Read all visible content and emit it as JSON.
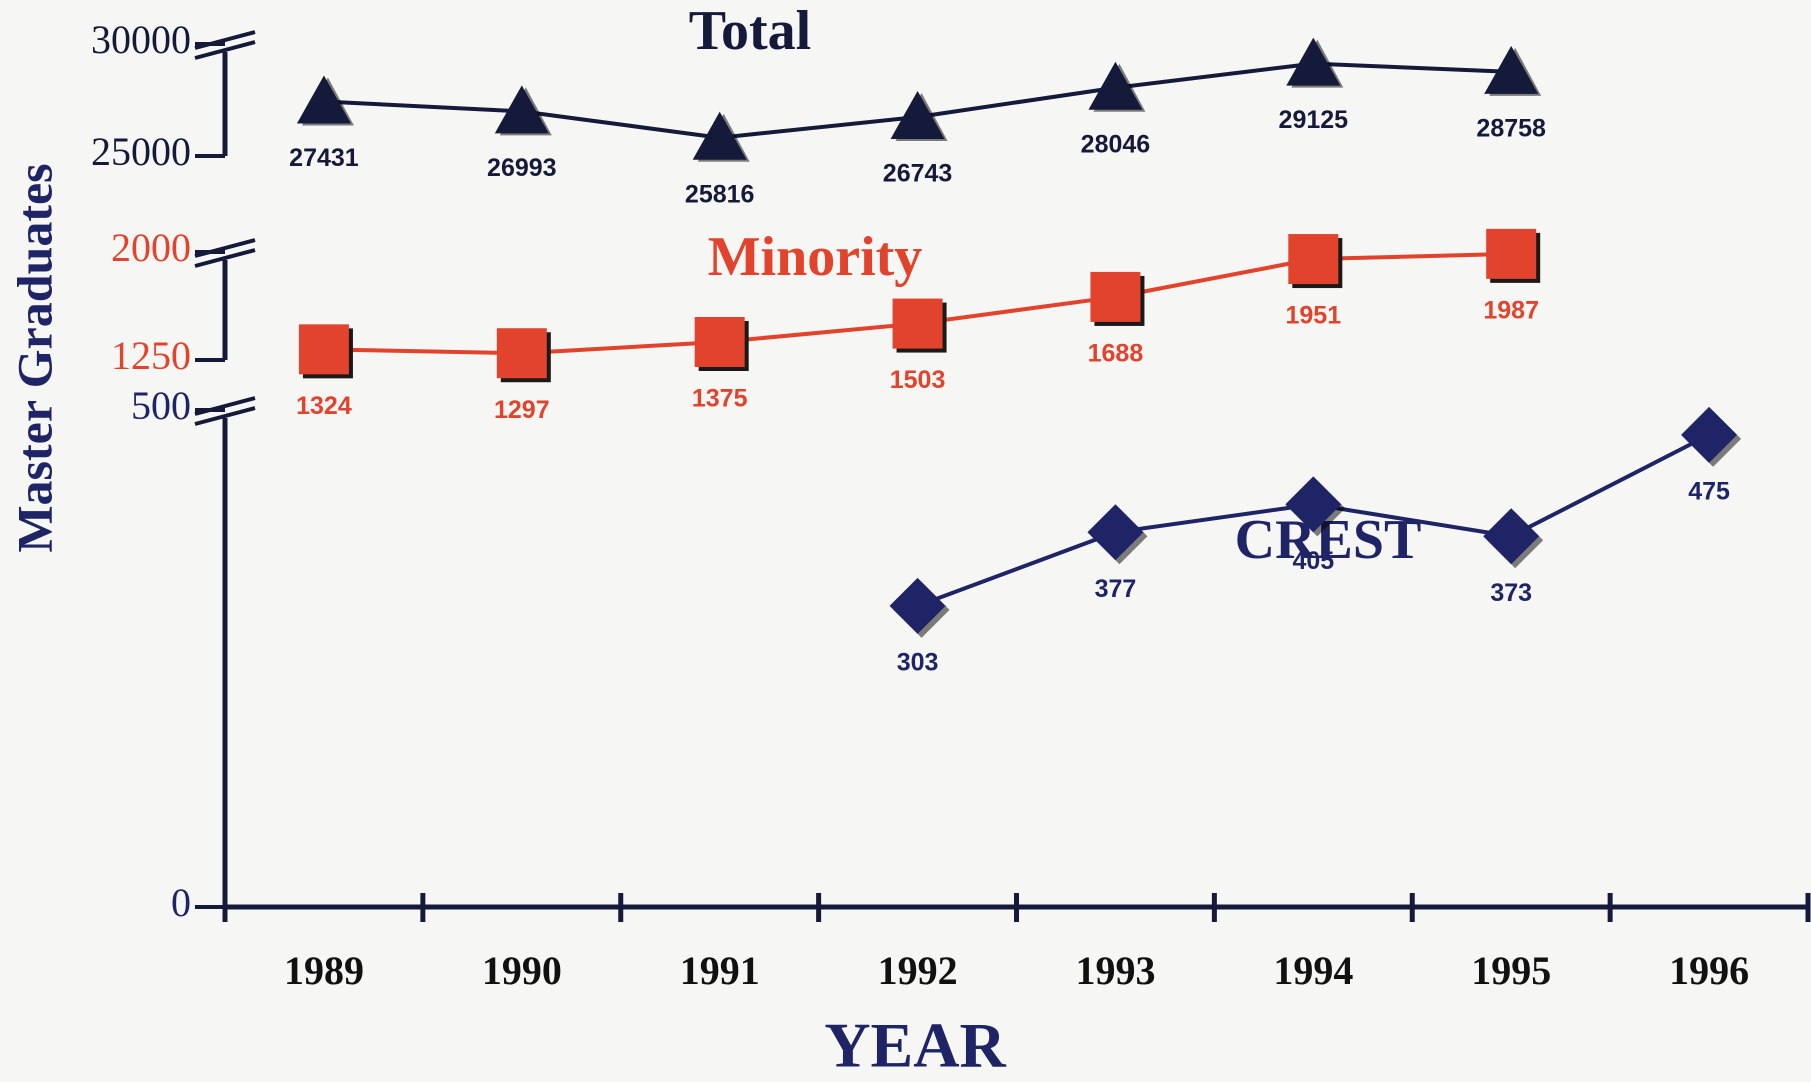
{
  "chart_data": {
    "type": "line",
    "y_label": "Master Graduates",
    "x_label": "YEAR",
    "categories": [
      "1989",
      "1990",
      "1991",
      "1992",
      "1993",
      "1994",
      "1995",
      "1996"
    ],
    "series": [
      {
        "name": "Total",
        "color": "#161a3a",
        "marker": "triangle",
        "values": [
          27431,
          26993,
          25816,
          26743,
          28046,
          29125,
          28758,
          null
        ],
        "ylim": [
          25000,
          30000
        ],
        "yticks": [
          25000,
          30000
        ]
      },
      {
        "name": "Minority",
        "color": "#e2432c",
        "marker": "square",
        "values": [
          1324,
          1297,
          1375,
          1503,
          1688,
          1951,
          1987,
          null
        ],
        "ylim": [
          1250,
          2000
        ],
        "yticks": [
          1250,
          2000
        ]
      },
      {
        "name": "CREST",
        "color": "#1e2466",
        "marker": "diamond",
        "values": [
          null,
          null,
          null,
          303,
          377,
          405,
          373,
          475
        ],
        "ylim": [
          0,
          500
        ],
        "yticks": [
          0,
          500
        ]
      }
    ]
  }
}
